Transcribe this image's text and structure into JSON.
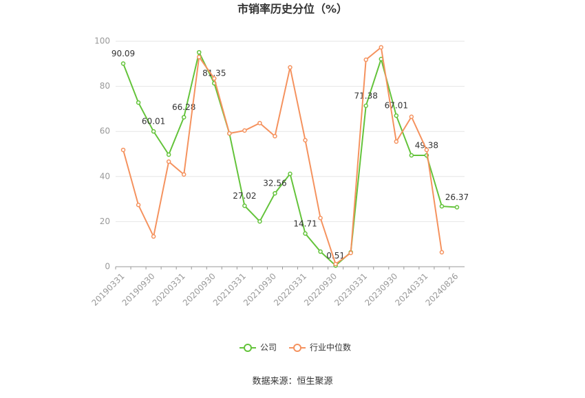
{
  "chart_data": {
    "type": "line",
    "title": "市销率历史分位（%）",
    "source": "数据来源：恒生聚源",
    "categories": [
      "20190331",
      null,
      "20190930",
      null,
      "20200331",
      null,
      "20200930",
      null,
      "20210331",
      null,
      "20210930",
      null,
      "20220331",
      null,
      "20220930",
      null,
      "20230331",
      null,
      "20230930",
      null,
      "20240331",
      null,
      "20240826"
    ],
    "ylim": [
      0,
      100
    ],
    "yticks": [
      0,
      20,
      40,
      60,
      80,
      100
    ],
    "grid": true,
    "legend": "bottom",
    "series": [
      {
        "name": "公司",
        "color": "#63c33a",
        "values": [
          90.09,
          72.8,
          60.01,
          49.7,
          66.28,
          95.1,
          81.35,
          59.1,
          27.02,
          20.1,
          32.56,
          41.2,
          14.71,
          6.7,
          0.51,
          6.4,
          71.38,
          92.1,
          67.01,
          49.4,
          49.38,
          26.8,
          26.37
        ],
        "value_labels": [
          "90.09",
          null,
          "60.01",
          null,
          "66.28",
          null,
          "81.35",
          null,
          "27.02",
          null,
          "32.56",
          null,
          "14.71",
          null,
          "0.51",
          null,
          "71.38",
          null,
          "67.01",
          null,
          "49.38",
          null,
          "26.37"
        ]
      },
      {
        "name": "行业中位数",
        "color": "#f5925e",
        "values": [
          51.8,
          27.4,
          13.4,
          46.6,
          40.9,
          93.0,
          83.5,
          59.1,
          60.4,
          63.7,
          57.9,
          88.4,
          56.1,
          21.6,
          1.2,
          6.1,
          91.8,
          97.3,
          55.5,
          66.5,
          51.8,
          6.4,
          null
        ]
      }
    ]
  }
}
